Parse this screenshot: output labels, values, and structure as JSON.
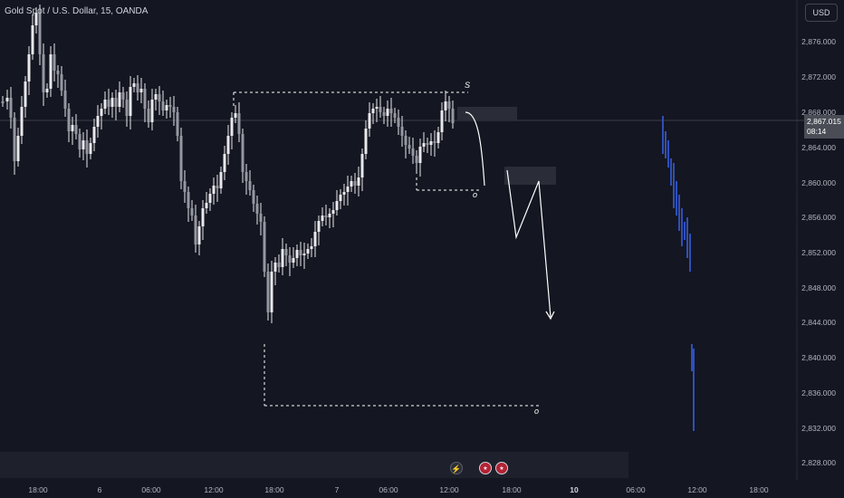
{
  "header": {
    "symbol_title": "Gold Spot / U.S. Dollar, 15, OANDA",
    "currency_button": "USD"
  },
  "price_axis": {
    "labels": [
      "2,876.000",
      "2,872.000",
      "2,868.000",
      "2,864.000",
      "2,860.000",
      "2,856.000",
      "2,852.000",
      "2,848.000",
      "2,844.000",
      "2,840.000",
      "2,836.000",
      "2,832.000",
      "2,828.000"
    ],
    "current_price": "2,867.015",
    "countdown": "08:14"
  },
  "time_axis": {
    "labels": [
      {
        "text": "18:00",
        "bold": false
      },
      {
        "text": "6",
        "bold": false
      },
      {
        "text": "06:00",
        "bold": false
      },
      {
        "text": "12:00",
        "bold": false
      },
      {
        "text": "18:00",
        "bold": false
      },
      {
        "text": "7",
        "bold": false
      },
      {
        "text": "06:00",
        "bold": false
      },
      {
        "text": "12:00",
        "bold": false
      },
      {
        "text": "18:00",
        "bold": false
      },
      {
        "text": "10",
        "bold": true
      },
      {
        "text": "06:00",
        "bold": false
      },
      {
        "text": "12:00",
        "bold": false
      },
      {
        "text": "18:00",
        "bold": false
      }
    ]
  },
  "annotations": {
    "top_letter": "S",
    "mid_letter": "o",
    "bottom_letter": "o"
  },
  "events": {
    "flash_icon": "lightning-icon",
    "us_flag_icon": "us-flag-icon"
  },
  "colors": {
    "background": "#141621",
    "candle": "#e8e8ec",
    "projection": "#2f4fb8",
    "drawing": "#ffffff"
  }
}
